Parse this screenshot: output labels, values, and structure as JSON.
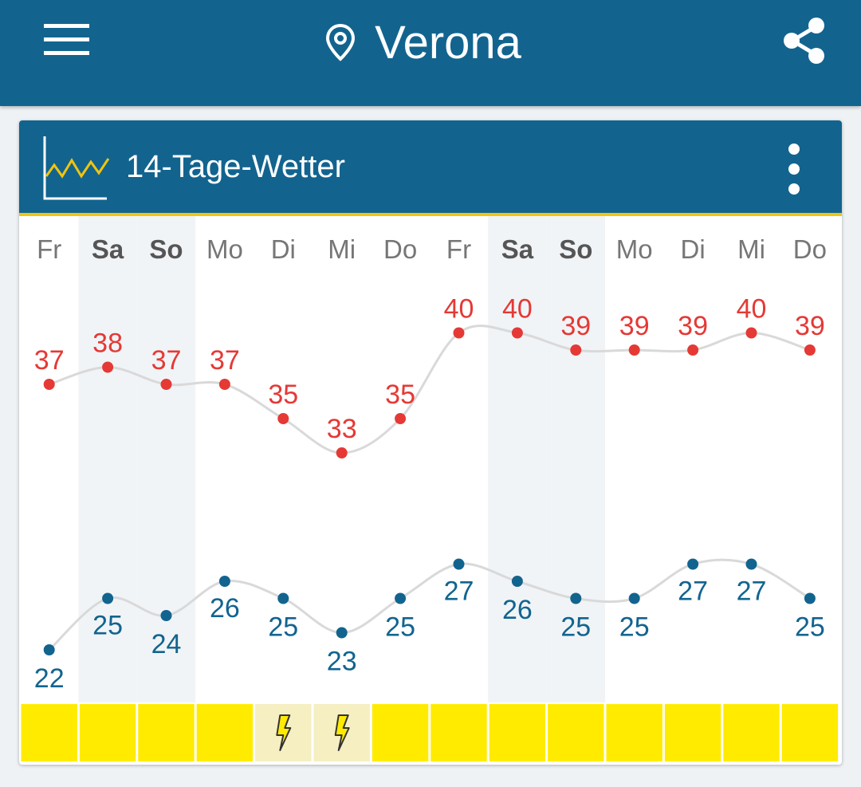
{
  "header": {
    "city": "Verona",
    "menu_icon": "hamburger-menu-icon",
    "location_icon": "map-pin-icon",
    "share_icon": "share-icon",
    "color": "#12648f"
  },
  "card": {
    "title": "14-Tage-Wetter",
    "chart_icon": "line-chart-icon",
    "more_icon": "more-vertical-icon",
    "accent_color": "#f1c40f"
  },
  "chart_data": {
    "type": "line",
    "categories": [
      "Fr",
      "Sa",
      "So",
      "Mo",
      "Di",
      "Mi",
      "Do",
      "Fr",
      "Sa",
      "So",
      "Mo",
      "Di",
      "Mi",
      "Do"
    ],
    "weekend": [
      false,
      true,
      true,
      false,
      false,
      false,
      false,
      false,
      true,
      true,
      false,
      false,
      false,
      false
    ],
    "series": [
      {
        "values": [
          37,
          38,
          37,
          37,
          35,
          33,
          35,
          40,
          40,
          39,
          39,
          39,
          40,
          39
        ],
        "color": "#e53935"
      },
      {
        "values": [
          22,
          25,
          24,
          26,
          25,
          23,
          25,
          27,
          26,
          25,
          25,
          27,
          27,
          25
        ],
        "color": "#12648f"
      }
    ],
    "warnings": [
      "none",
      "none",
      "none",
      "none",
      "thunderstorm",
      "thunderstorm",
      "none",
      "none",
      "none",
      "none",
      "none",
      "none",
      "none",
      "none"
    ],
    "warning_icon": "lightning-bolt-icon",
    "warning_colors": {
      "none": "#ffeb00",
      "thunderstorm": "#f6efc2"
    }
  }
}
